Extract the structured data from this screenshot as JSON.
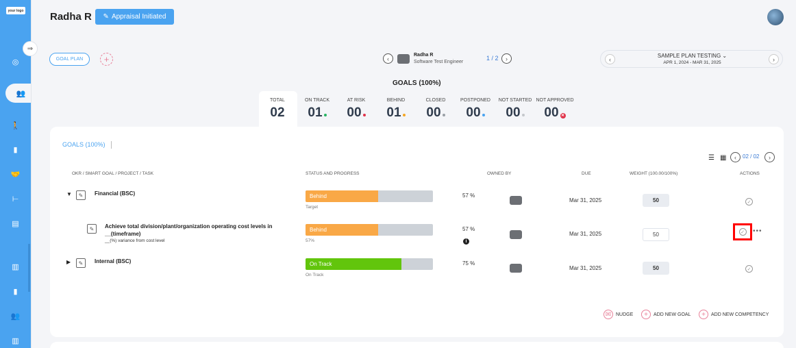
{
  "brand": {
    "logo_text": "your logo"
  },
  "sidebar": {
    "items": [
      {
        "icon": "target-icon"
      },
      {
        "icon": "users-icon"
      },
      {
        "icon": "person-walk-icon"
      },
      {
        "icon": "book-icon"
      },
      {
        "icon": "handshake-icon"
      },
      {
        "icon": "hierarchy-icon"
      },
      {
        "icon": "document-icon"
      },
      {
        "icon": "bar-chart-icon"
      },
      {
        "icon": "book-icon"
      },
      {
        "icon": "team-icon"
      },
      {
        "icon": "report-icon"
      }
    ]
  },
  "header": {
    "user_name": "Radha R",
    "status": "Appraisal Initiated"
  },
  "plan_bar": {
    "goal_plan_label": "GOAL PLAN",
    "add_icon": "plus",
    "employee_name": "Radha R",
    "employee_role": "Software Test Engineer",
    "employee_page": "1 / 2",
    "plan_name": "SAMPLE PLAN TESTING",
    "plan_range": "APR 1, 2024 - MAR 31, 2025"
  },
  "goals_heading": "GOALS (100%)",
  "summary": [
    {
      "label": "TOTAL",
      "value": "02",
      "dot": ""
    },
    {
      "label": "ON TRACK",
      "value": "01",
      "dot": "#28b463"
    },
    {
      "label": "AT RISK",
      "value": "00",
      "dot": "#e0344b"
    },
    {
      "label": "BEHIND",
      "value": "01",
      "dot": "#f5a623"
    },
    {
      "label": "CLOSED",
      "value": "00",
      "dot": "#9aa0a6"
    },
    {
      "label": "POSTPONED",
      "value": "00",
      "dot": "#4aa3f0"
    },
    {
      "label": "NOT STARTED",
      "value": "00",
      "dot": "#c4c8cc"
    },
    {
      "label": "NOT APPROVED",
      "value": "00",
      "dot": "x"
    }
  ],
  "card": {
    "tab_label": "GOALS (100%)",
    "pagination": "02 / 02",
    "columns": {
      "goal": "OKR / SMART GOAL / PROJECT / TASK",
      "status": "STATUS AND PROGRESS",
      "owner": "OWNED BY",
      "due": "DUE",
      "weight": "WEIGHT (100.00/100%)",
      "actions": "ACTIONS"
    },
    "rows": [
      {
        "toggle": "▼",
        "title": "Financial (BSC)",
        "subtitle": "",
        "status": "Behind",
        "status_color": "#f9a846",
        "progress": 0.57,
        "caption": "Target",
        "pct": "57 %",
        "due": "Mar 31, 2025",
        "weight": "50"
      },
      {
        "toggle": "",
        "title_line1": "Achieve total division/plant/organization operating cost levels in",
        "title_line2": "__(timeframe)",
        "subtitle": "__(%) variance from cost level",
        "status": "Behind",
        "status_color": "#f9a846",
        "progress": 0.57,
        "caption": "57%",
        "pct": "57 %",
        "due": "Mar 31, 2025",
        "weight": "50"
      },
      {
        "toggle": "▶",
        "title": "Internal (BSC)",
        "subtitle": "",
        "status": "On Track",
        "status_color": "#62c50c",
        "progress": 0.75,
        "caption": "On Track",
        "pct": "75 %",
        "due": "Mar 31, 2025",
        "weight": "50"
      }
    ],
    "footer": {
      "nudge": "NUDGE",
      "add_goal": "ADD NEW GOAL",
      "add_competency": "ADD NEW COMPETENCY"
    }
  }
}
